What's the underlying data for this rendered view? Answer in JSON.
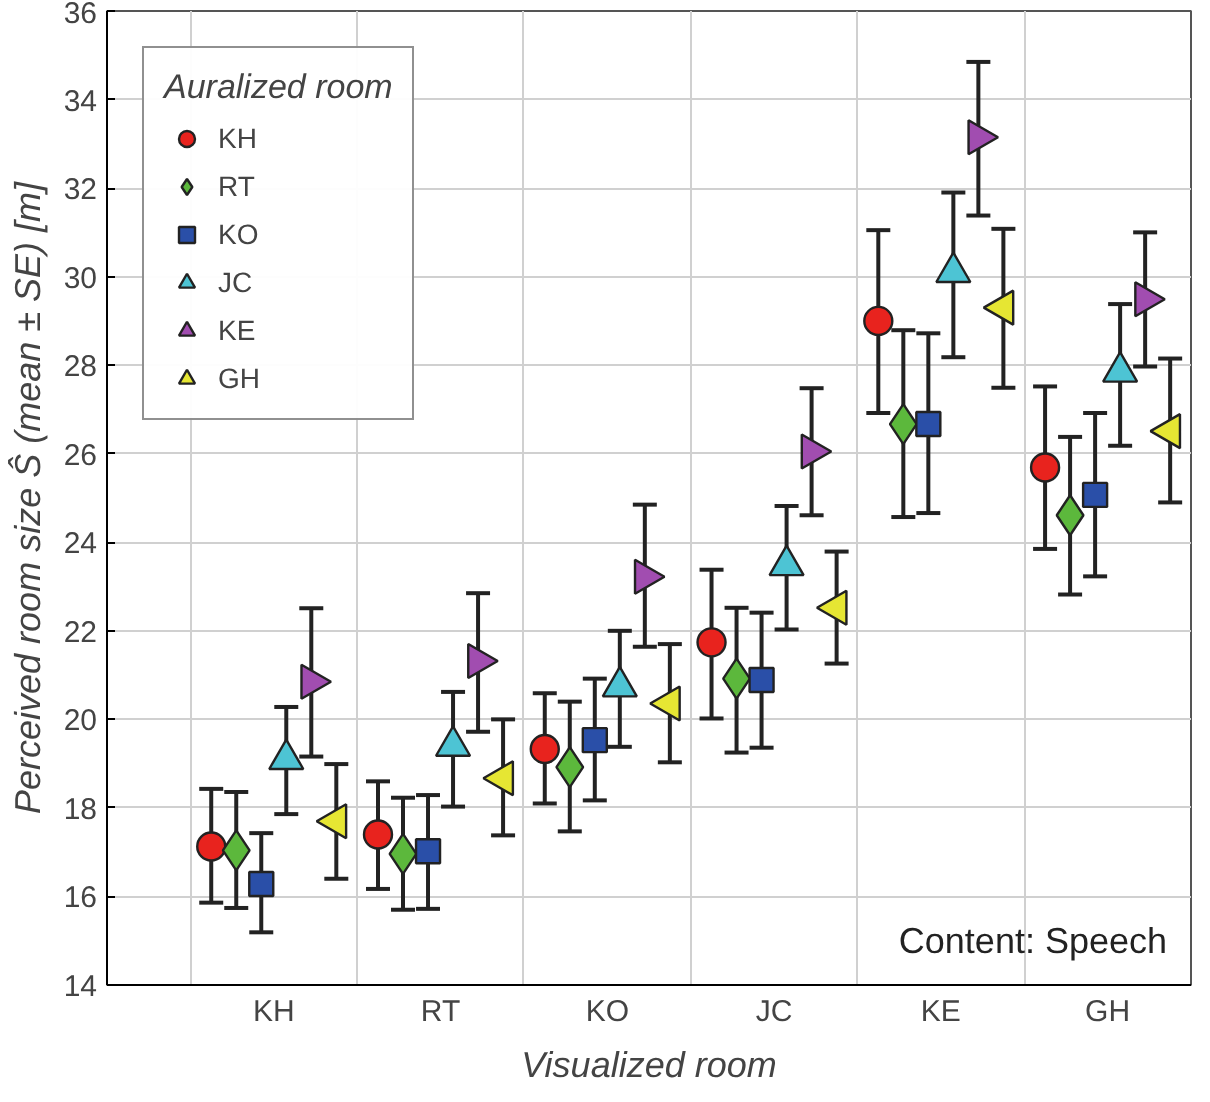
{
  "chart_data": {
    "type": "scatter",
    "xlabel": "Visualized room",
    "ylabel": "Perceived room size Ŝ (mean ± SE) [m]",
    "legend_title": "Auralized room",
    "legend": "top left",
    "grid": true,
    "categories": [
      "KH",
      "RT",
      "KO",
      "JC",
      "KE",
      "GH"
    ],
    "ylim": [
      14,
      36
    ],
    "yticks": [
      14,
      16,
      18,
      20,
      22,
      24,
      26,
      28,
      30,
      32,
      34,
      36
    ],
    "annotations": [
      "Content: Speech"
    ],
    "series": [
      {
        "name": "KH",
        "color": "#e8231e",
        "marker": "circle",
        "values": [
          17.13,
          17.4,
          19.33,
          21.74,
          29.0,
          25.69
        ],
        "errors": [
          [
            15.86,
            18.43
          ],
          [
            16.17,
            18.6
          ],
          [
            18.1,
            20.59
          ],
          [
            20.02,
            23.38
          ],
          [
            26.92,
            31.05
          ],
          [
            23.85,
            27.52
          ]
        ]
      },
      {
        "name": "RT",
        "color": "#5cb83c",
        "marker": "diamond",
        "values": [
          17.04,
          16.96,
          18.92,
          20.92,
          26.67,
          24.61
        ],
        "errors": [
          [
            15.74,
            18.36
          ],
          [
            15.7,
            18.23
          ],
          [
            17.47,
            20.4
          ],
          [
            19.25,
            22.52
          ],
          [
            24.57,
            28.79
          ],
          [
            22.82,
            26.38
          ]
        ]
      },
      {
        "name": "KO",
        "color": "#2a4fa8",
        "marker": "square",
        "values": [
          16.28,
          17.02,
          19.53,
          20.89,
          26.67,
          25.07
        ],
        "errors": [
          [
            15.19,
            17.43
          ],
          [
            15.72,
            18.29
          ],
          [
            18.17,
            20.92
          ],
          [
            19.36,
            22.41
          ],
          [
            24.66,
            28.72
          ],
          [
            23.23,
            26.92
          ]
        ]
      },
      {
        "name": "JC",
        "color": "#4dc4d4",
        "marker": "triangle",
        "values": [
          19.1,
          19.4,
          20.74,
          23.48,
          30.1,
          27.85
        ],
        "errors": [
          [
            17.86,
            20.28
          ],
          [
            18.03,
            20.62
          ],
          [
            19.38,
            22.0
          ],
          [
            22.03,
            24.82
          ],
          [
            28.18,
            31.9
          ],
          [
            26.18,
            29.38
          ]
        ]
      },
      {
        "name": "KE",
        "color": "#a14db0",
        "marker": "triangle",
        "values": [
          20.85,
          21.32,
          23.22,
          26.05,
          33.15,
          29.49
        ],
        "errors": [
          [
            19.16,
            22.51
          ],
          [
            19.72,
            22.85
          ],
          [
            21.64,
            24.85
          ],
          [
            24.61,
            27.48
          ],
          [
            31.38,
            34.85
          ],
          [
            27.97,
            31.0
          ]
        ]
      },
      {
        "name": "GH",
        "color": "#e6e633",
        "marker": "triangle",
        "values": [
          17.7,
          18.67,
          20.36,
          22.52,
          29.3,
          26.51
        ],
        "errors": [
          [
            16.4,
            18.99
          ],
          [
            17.38,
            20.0
          ],
          [
            19.03,
            21.7
          ],
          [
            21.26,
            23.79
          ],
          [
            27.49,
            31.08
          ],
          [
            24.9,
            28.15
          ]
        ]
      }
    ]
  }
}
